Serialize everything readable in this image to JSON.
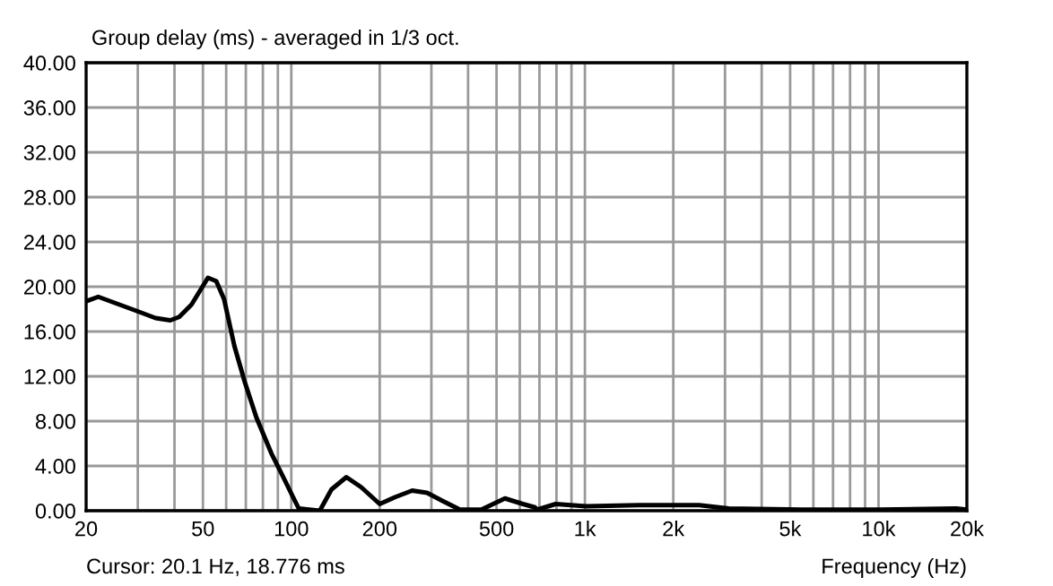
{
  "chart_data": {
    "type": "line",
    "title": "Group delay (ms) - averaged in 1/3 oct.",
    "xlabel": "Frequency (Hz)",
    "annotations": [
      "Cursor: 20.1 Hz, 18.776 ms"
    ],
    "log": "x",
    "grid": true,
    "line_style": "solid",
    "marker": "none",
    "xlim": [
      20,
      20000
    ],
    "xticks": [
      20,
      {
        "value": 30,
        "label": null
      },
      {
        "value": 40,
        "label": null
      },
      50,
      {
        "value": 60,
        "label": null
      },
      {
        "value": 70,
        "label": null
      },
      {
        "value": 80,
        "label": null
      },
      {
        "value": 90,
        "label": null
      },
      100,
      200,
      {
        "value": 300,
        "label": null
      },
      {
        "value": 400,
        "label": null
      },
      500,
      {
        "value": 600,
        "label": null
      },
      {
        "value": 700,
        "label": null
      },
      {
        "value": 800,
        "label": null
      },
      {
        "value": 900,
        "label": null
      },
      {
        "value": 1000,
        "label": "1k"
      },
      {
        "value": 2000,
        "label": "2k"
      },
      {
        "value": 3000,
        "label": null
      },
      {
        "value": 4000,
        "label": null
      },
      {
        "value": 5000,
        "label": "5k"
      },
      {
        "value": 6000,
        "label": null
      },
      {
        "value": 7000,
        "label": null
      },
      {
        "value": 8000,
        "label": null
      },
      {
        "value": 9000,
        "label": null
      },
      {
        "value": 10000,
        "label": "10k"
      },
      {
        "value": 20000,
        "label": "20k"
      }
    ],
    "ylim": [
      0,
      40
    ],
    "yticks": [
      {
        "value": 0,
        "label": "0.00"
      },
      {
        "value": 4,
        "label": "4.00"
      },
      {
        "value": 8,
        "label": "8.00"
      },
      {
        "value": 12,
        "label": "12.00"
      },
      {
        "value": 16,
        "label": "16.00"
      },
      {
        "value": 20,
        "label": "20.00"
      },
      {
        "value": 24,
        "label": "24.00"
      },
      {
        "value": 28,
        "label": "28.00"
      },
      {
        "value": 32,
        "label": "32.00"
      },
      {
        "value": 36,
        "label": "36.00"
      },
      {
        "value": 40,
        "label": "40.00"
      }
    ],
    "series": [
      {
        "color": "#000000",
        "x": [
          20,
          22,
          30,
          34.5,
          38.7,
          41.5,
          45.7,
          52,
          55.5,
          59,
          64,
          69.4,
          76.1,
          85.6,
          94.3,
          101,
          106,
          125,
          137,
          154,
          173,
          200,
          225,
          258,
          290,
          326,
          375,
          444,
          534,
          615,
          676,
          689,
          795,
          1010,
          1530,
          2450,
          3090,
          5470,
          10100,
          18400,
          20000
        ],
        "values": [
          18.7,
          19.1,
          17.8,
          17.2,
          17.0,
          17.3,
          18.4,
          20.8,
          20.5,
          18.9,
          14.7,
          11.5,
          8.3,
          5.1,
          2.9,
          1.3,
          0.2,
          0.0,
          1.9,
          3.0,
          2.1,
          0.6,
          1.2,
          1.8,
          1.6,
          0.9,
          0.1,
          0.1,
          1.1,
          0.6,
          0.3,
          0.1,
          0.6,
          0.4,
          0.5,
          0.5,
          0.2,
          0.1,
          0.1,
          0.2,
          0.1
        ]
      }
    ]
  }
}
